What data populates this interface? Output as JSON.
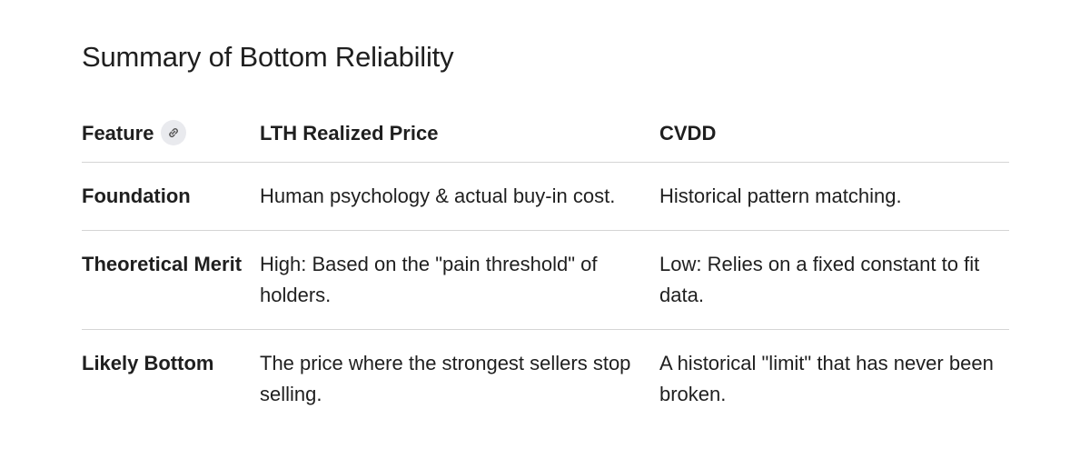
{
  "header": {
    "title": "Summary of Bottom Reliability"
  },
  "table": {
    "columns": [
      "Feature",
      "LTH Realized Price",
      "CVDD"
    ],
    "rows": [
      [
        "Foundation",
        "Human psychology & actual buy-in cost.",
        "Historical pattern matching."
      ],
      [
        "Theoretical Merit",
        "High: Based on the \"pain threshold\" of holders.",
        "Low: Relies on a fixed constant to fit data."
      ],
      [
        "Likely Bottom",
        "The price where the strongest sellers stop selling.",
        "A historical \"limit\" that has never been broken."
      ]
    ]
  }
}
